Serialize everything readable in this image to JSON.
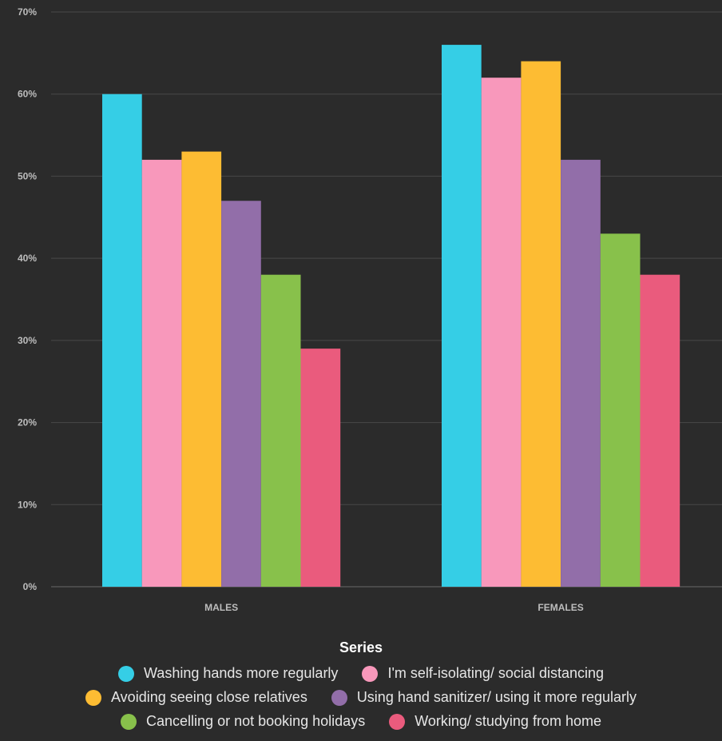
{
  "chart_data": {
    "type": "bar",
    "categories": [
      "MALES",
      "FEMALES"
    ],
    "ylim": [
      0,
      70
    ],
    "yticks": [
      "0%",
      "10%",
      "20%",
      "30%",
      "40%",
      "50%",
      "60%",
      "70%"
    ],
    "ytick_values": [
      0,
      10,
      20,
      30,
      40,
      50,
      60,
      70
    ],
    "grid": true,
    "legend_title": "Series",
    "legend_position": "bottom",
    "series": [
      {
        "name": "Washing hands more regularly",
        "values": [
          60,
          66
        ],
        "color": "#35cee6"
      },
      {
        "name": "I'm self-isolating/ social distancing",
        "values": [
          52,
          62
        ],
        "color": "#f898bb"
      },
      {
        "name": "Avoiding seeing close relatives",
        "values": [
          53,
          64
        ],
        "color": "#fdbc33"
      },
      {
        "name": "Using hand sanitizer/ using it more regularly",
        "values": [
          47,
          52
        ],
        "color": "#926ea9"
      },
      {
        "name": "Cancelling or not booking holidays",
        "values": [
          38,
          43
        ],
        "color": "#88c14b"
      },
      {
        "name": "Working/ studying from home",
        "values": [
          29,
          38
        ],
        "color": "#ea5b7d"
      }
    ]
  }
}
